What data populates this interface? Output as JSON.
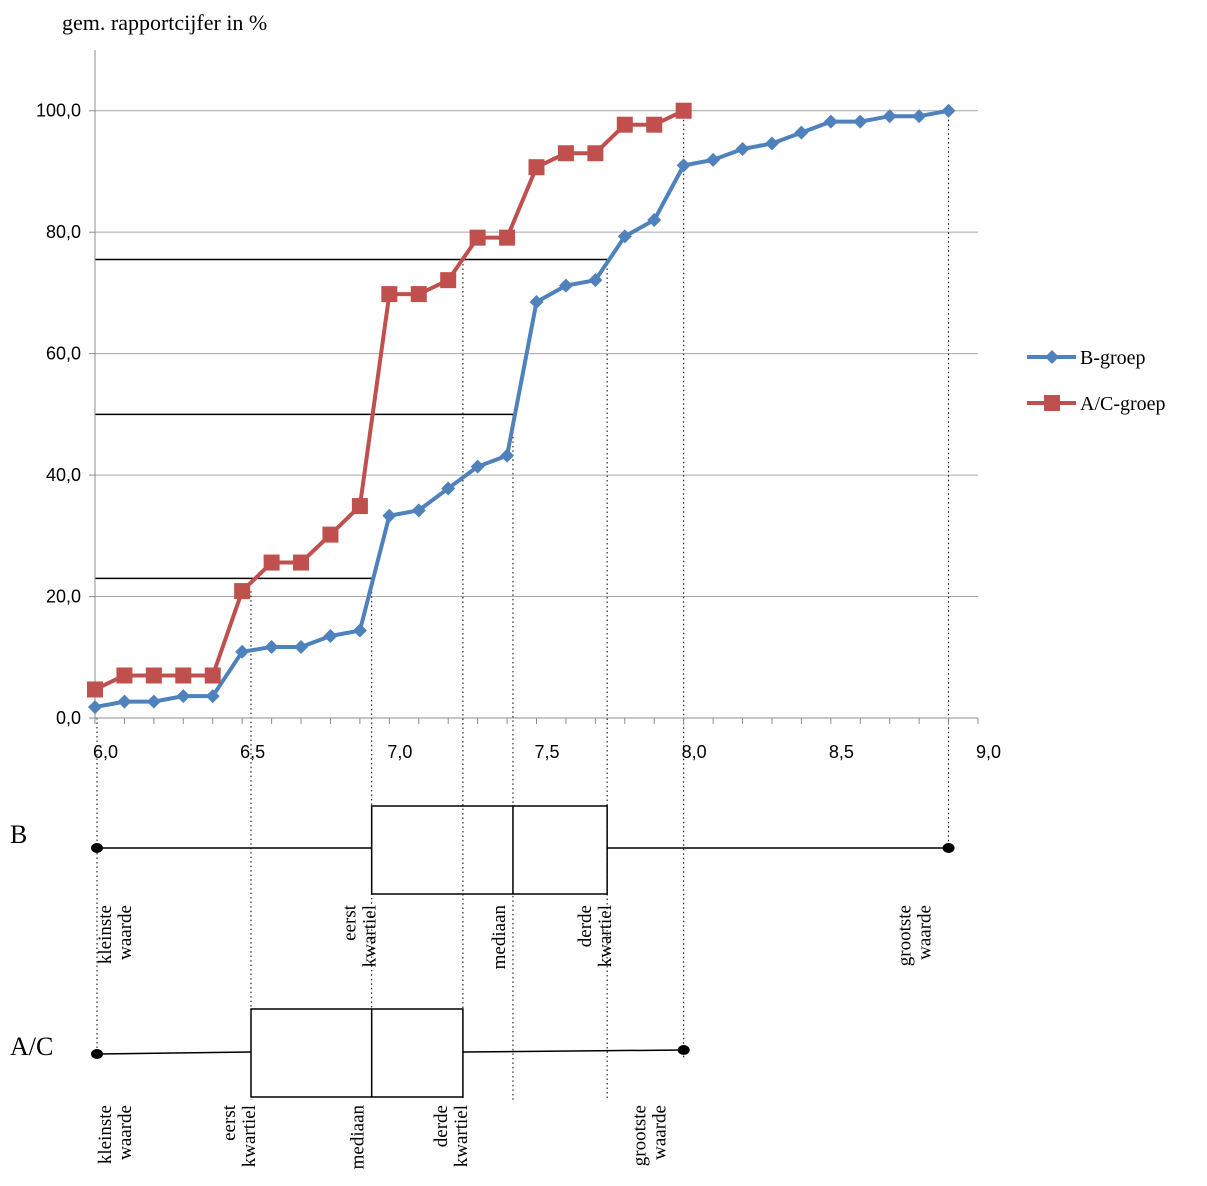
{
  "chart_data": {
    "type": "line",
    "title": "gem. rapportcijfer in %",
    "xlabel": "",
    "ylabel": "",
    "xlim": [
      6.0,
      9.0
    ],
    "ylim": [
      0,
      110
    ],
    "x_tick_labels": [
      {
        "value": 6.0,
        "label": "6,0"
      },
      {
        "value": 6.5,
        "label": "6,5"
      },
      {
        "value": 7.0,
        "label": "7,0"
      },
      {
        "value": 7.5,
        "label": "7,5"
      },
      {
        "value": 8.0,
        "label": "8,0"
      },
      {
        "value": 8.5,
        "label": "8,5"
      },
      {
        "value": 9.0,
        "label": "9,0"
      }
    ],
    "y_tick_labels": [
      {
        "value": 0,
        "label": "0,0"
      },
      {
        "value": 20,
        "label": "20,0"
      },
      {
        "value": 40,
        "label": "40,0"
      },
      {
        "value": 60,
        "label": "60,0"
      },
      {
        "value": 80,
        "label": "80,0"
      },
      {
        "value": 100,
        "label": "100,0"
      }
    ],
    "grid": true,
    "legend_position": "right",
    "series": [
      {
        "name": "B-groep",
        "color": "#4f81bd",
        "marker": "diamond",
        "points": [
          [
            6.0,
            1.8
          ],
          [
            6.1,
            2.7
          ],
          [
            6.2,
            2.7
          ],
          [
            6.3,
            3.6
          ],
          [
            6.4,
            3.6
          ],
          [
            6.5,
            10.9
          ],
          [
            6.6,
            11.7
          ],
          [
            6.7,
            11.7
          ],
          [
            6.8,
            13.5
          ],
          [
            6.9,
            14.4
          ],
          [
            7.0,
            33.3
          ],
          [
            7.1,
            34.2
          ],
          [
            7.2,
            37.8
          ],
          [
            7.3,
            41.4
          ],
          [
            7.4,
            43.2
          ],
          [
            7.5,
            68.5
          ],
          [
            7.6,
            71.2
          ],
          [
            7.7,
            72.1
          ],
          [
            7.8,
            79.3
          ],
          [
            7.9,
            82.0
          ],
          [
            8.0,
            91.0
          ],
          [
            8.1,
            91.9
          ],
          [
            8.2,
            93.7
          ],
          [
            8.3,
            94.6
          ],
          [
            8.4,
            96.4
          ],
          [
            8.5,
            98.2
          ],
          [
            8.6,
            98.2
          ],
          [
            8.7,
            99.1
          ],
          [
            8.8,
            99.1
          ],
          [
            8.9,
            100.0
          ]
        ]
      },
      {
        "name": "A/C-groep",
        "color": "#c0504d",
        "marker": "square",
        "points": [
          [
            6.0,
            4.7
          ],
          [
            6.1,
            7.0
          ],
          [
            6.2,
            7.0
          ],
          [
            6.3,
            7.0
          ],
          [
            6.4,
            7.0
          ],
          [
            6.5,
            20.9
          ],
          [
            6.6,
            25.6
          ],
          [
            6.7,
            25.6
          ],
          [
            6.8,
            30.2
          ],
          [
            6.9,
            34.9
          ],
          [
            7.0,
            69.8
          ],
          [
            7.1,
            69.8
          ],
          [
            7.2,
            72.1
          ],
          [
            7.3,
            79.1
          ],
          [
            7.4,
            79.1
          ],
          [
            7.5,
            90.7
          ],
          [
            7.6,
            93.0
          ],
          [
            7.7,
            93.0
          ],
          [
            7.8,
            97.7
          ],
          [
            7.9,
            97.7
          ],
          [
            8.0,
            100.0
          ]
        ]
      }
    ],
    "reference_lines_y": [
      23,
      50,
      75.5
    ],
    "quartile_drop_lines_x": [
      6.94,
      7.25,
      7.45,
      7.74
    ],
    "boxplots": [
      {
        "group": "B",
        "min": 6.0,
        "q1": 6.94,
        "median": 7.42,
        "q3": 7.74,
        "max": 8.9,
        "labels": [
          {
            "text": "kleinste waarde",
            "lines": [
              "kleinste",
              "waarde"
            ]
          },
          {
            "text": "eerst kwartiel",
            "lines": [
              "eerst",
              "kwartiel"
            ]
          },
          {
            "text": "mediaan",
            "lines": [
              "mediaan"
            ]
          },
          {
            "text": "derde kwartiel",
            "lines": [
              "derde",
              "kwartiel"
            ]
          },
          {
            "text": "grootste waarde",
            "lines": [
              "grootste",
              "waarde"
            ]
          }
        ]
      },
      {
        "group": "A/C",
        "min": 6.0,
        "q1": 6.53,
        "median": 6.94,
        "q3": 7.25,
        "max": 8.0,
        "labels": [
          {
            "text": "kleinste waarde",
            "lines": [
              "kleinste",
              "waarde"
            ]
          },
          {
            "text": "eerst kwartiel",
            "lines": [
              "eerst",
              "kwartiel"
            ]
          },
          {
            "text": "mediaan",
            "lines": [
              "mediaan"
            ]
          },
          {
            "text": "derde kwartiel",
            "lines": [
              "derde",
              "kwartiel"
            ]
          },
          {
            "text": "grootste waarde",
            "lines": [
              "grootste",
              "waarde"
            ]
          }
        ]
      }
    ]
  }
}
